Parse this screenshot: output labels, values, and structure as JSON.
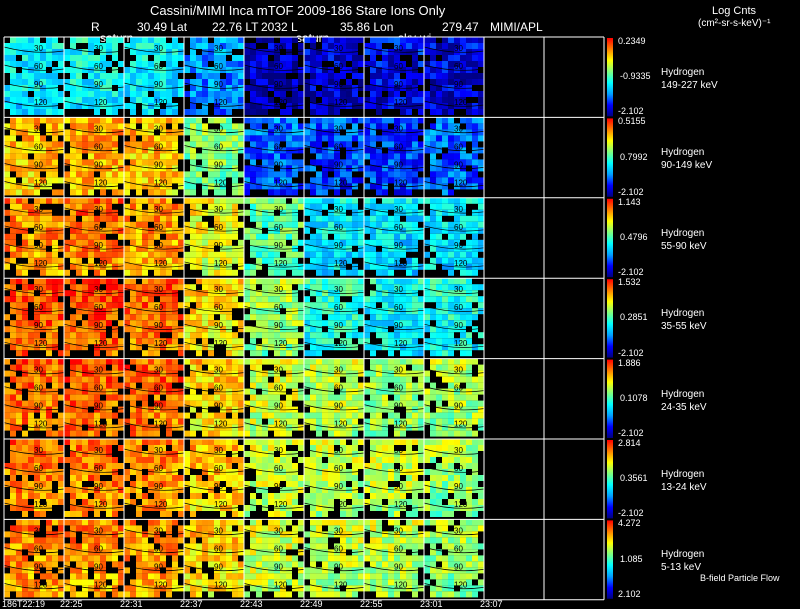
{
  "header": {
    "title": "Cassini/MIMI Inca mTOF  2009-186   Stare   Ions Only",
    "r_label": "R",
    "lat_label": "30.49 Lat",
    "lt_label": "22.76 LT",
    "l_label": "2032 L",
    "lon_label": "35.86 Lon",
    "lon2_value": "279.47",
    "org": "MIMI/APL",
    "direction_labels": [
      "saturn",
      "saturn",
      "sky-wi"
    ],
    "units_title": "Log Cnts",
    "units": "(cm²-sr-s-keV)⁻¹"
  },
  "colors": {
    "background": "#000000",
    "grid": "#ffffff",
    "colormap": [
      "#00007f",
      "#0000ff",
      "#00a0ff",
      "#00ffff",
      "#80ff80",
      "#ffff00",
      "#ff8000",
      "#ff0000"
    ]
  },
  "chart_data": {
    "type": "heatmap",
    "x_labels": [
      "186T22:19",
      "22:25",
      "22:31",
      "22:37",
      "22:43",
      "22:49",
      "22:55",
      "23:01",
      "23:07"
    ],
    "columns_with_data": 8,
    "total_columns": 10,
    "contour_labels": [
      "30",
      "60",
      "90",
      "120"
    ],
    "rows": [
      {
        "species": "Hydrogen",
        "energy": "149-227 keV",
        "cb_max": "0.2349",
        "cb_mid": "-0.9335",
        "cb_min": "-2.102",
        "levels": [
          0.42,
          0.44,
          0.42,
          0.3,
          0.08,
          0.1,
          0.14,
          0.12
        ]
      },
      {
        "species": "Hydrogen",
        "energy": "90-149 keV",
        "cb_max": "0.5155",
        "cb_mid": "0.7992",
        "cb_min": "-2.102",
        "levels": [
          0.8,
          0.82,
          0.8,
          0.6,
          0.26,
          0.22,
          0.22,
          0.26
        ]
      },
      {
        "species": "Hydrogen",
        "energy": "55-90 keV",
        "cb_max": "1.143",
        "cb_mid": "0.4796",
        "cb_min": "-2.102",
        "levels": [
          0.86,
          0.88,
          0.84,
          0.72,
          0.55,
          0.42,
          0.4,
          0.42
        ]
      },
      {
        "species": "Hydrogen",
        "energy": "35-55 keV",
        "cb_max": "1.532",
        "cb_mid": "0.2851",
        "cb_min": "-2.102",
        "levels": [
          0.92,
          0.94,
          0.9,
          0.76,
          0.62,
          0.48,
          0.44,
          0.46
        ]
      },
      {
        "species": "Hydrogen",
        "energy": "24-35 keV",
        "cb_max": "1.886",
        "cb_mid": "0.1078",
        "cb_min": "-2.102",
        "levels": [
          0.9,
          0.91,
          0.9,
          0.78,
          0.68,
          0.66,
          0.62,
          0.64
        ]
      },
      {
        "species": "Hydrogen",
        "energy": "13-24 keV",
        "cb_max": "2.814",
        "cb_mid": "0.3561",
        "cb_min": "-2.102",
        "levels": [
          0.88,
          0.88,
          0.86,
          0.8,
          0.68,
          0.66,
          0.66,
          0.62
        ]
      },
      {
        "species": "Hydrogen",
        "energy": "5-13 keV",
        "cb_max": "4.272",
        "cb_mid": "1.085",
        "cb_min": "2.102",
        "levels": [
          0.86,
          0.85,
          0.84,
          0.78,
          0.68,
          0.66,
          0.66,
          0.62
        ]
      }
    ],
    "footer_label": "B-field Particle Flow"
  }
}
